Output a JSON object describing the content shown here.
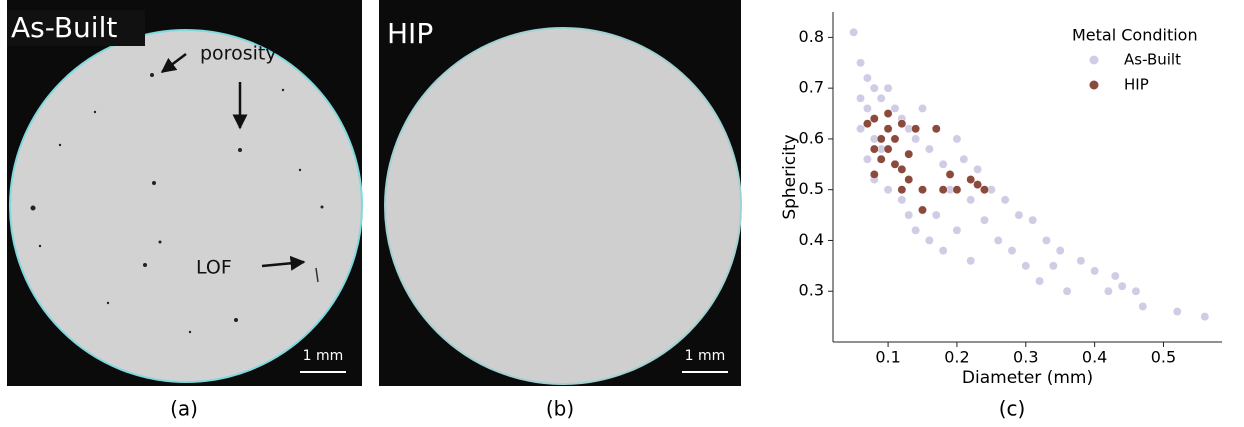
{
  "panels": {
    "a": {
      "label": "As-Built",
      "annotations": [
        "porosity",
        "LOF"
      ],
      "scale_bar": "1 mm",
      "caption": "(a)"
    },
    "b": {
      "label": "HIP",
      "scale_bar": "1 mm",
      "caption": "(b)"
    },
    "c": {
      "caption": "(c)"
    }
  },
  "chart_data": {
    "type": "scatter",
    "x_label": "Diameter (mm)",
    "y_label": "Sphericity",
    "legend_title": "Metal Condition",
    "legend_position": "upper right",
    "xlim": [
      0.02,
      0.585
    ],
    "ylim": [
      0.2,
      0.85
    ],
    "xticks": [
      0.1,
      0.2,
      0.3,
      0.4,
      0.5
    ],
    "yticks": [
      0.3,
      0.4,
      0.5,
      0.6,
      0.7,
      0.8
    ],
    "grid": false,
    "series": [
      {
        "name": "As-Built",
        "color": "#8a80c0",
        "alpha": 0.4,
        "x": [
          0.05,
          0.06,
          0.06,
          0.07,
          0.07,
          0.07,
          0.08,
          0.08,
          0.08,
          0.09,
          0.09,
          0.1,
          0.1,
          0.1,
          0.11,
          0.11,
          0.12,
          0.12,
          0.13,
          0.13,
          0.14,
          0.14,
          0.15,
          0.15,
          0.16,
          0.16,
          0.17,
          0.17,
          0.18,
          0.18,
          0.19,
          0.2,
          0.2,
          0.21,
          0.22,
          0.22,
          0.23,
          0.24,
          0.25,
          0.26,
          0.27,
          0.28,
          0.29,
          0.3,
          0.31,
          0.32,
          0.33,
          0.34,
          0.35,
          0.36,
          0.38,
          0.4,
          0.42,
          0.43,
          0.44,
          0.46,
          0.47,
          0.52,
          0.56,
          0.06
        ],
        "values": [
          0.81,
          0.75,
          0.62,
          0.72,
          0.66,
          0.56,
          0.7,
          0.6,
          0.52,
          0.68,
          0.58,
          0.7,
          0.62,
          0.5,
          0.66,
          0.55,
          0.64,
          0.48,
          0.62,
          0.45,
          0.6,
          0.42,
          0.66,
          0.5,
          0.58,
          0.4,
          0.62,
          0.45,
          0.55,
          0.38,
          0.5,
          0.6,
          0.42,
          0.56,
          0.48,
          0.36,
          0.54,
          0.44,
          0.5,
          0.4,
          0.48,
          0.38,
          0.45,
          0.35,
          0.44,
          0.32,
          0.4,
          0.35,
          0.38,
          0.3,
          0.36,
          0.34,
          0.3,
          0.33,
          0.31,
          0.3,
          0.27,
          0.26,
          0.25,
          0.68
        ]
      },
      {
        "name": "HIP",
        "color": "#8c4a3c",
        "alpha": 1,
        "x": [
          0.07,
          0.08,
          0.08,
          0.09,
          0.09,
          0.1,
          0.1,
          0.1,
          0.11,
          0.11,
          0.12,
          0.12,
          0.13,
          0.13,
          0.14,
          0.15,
          0.15,
          0.17,
          0.18,
          0.19,
          0.2,
          0.22,
          0.23,
          0.24,
          0.08,
          0.12
        ],
        "values": [
          0.63,
          0.64,
          0.53,
          0.6,
          0.56,
          0.65,
          0.58,
          0.62,
          0.55,
          0.6,
          0.63,
          0.5,
          0.52,
          0.57,
          0.62,
          0.5,
          0.46,
          0.62,
          0.5,
          0.53,
          0.5,
          0.52,
          0.51,
          0.5,
          0.58,
          0.54
        ]
      }
    ]
  }
}
